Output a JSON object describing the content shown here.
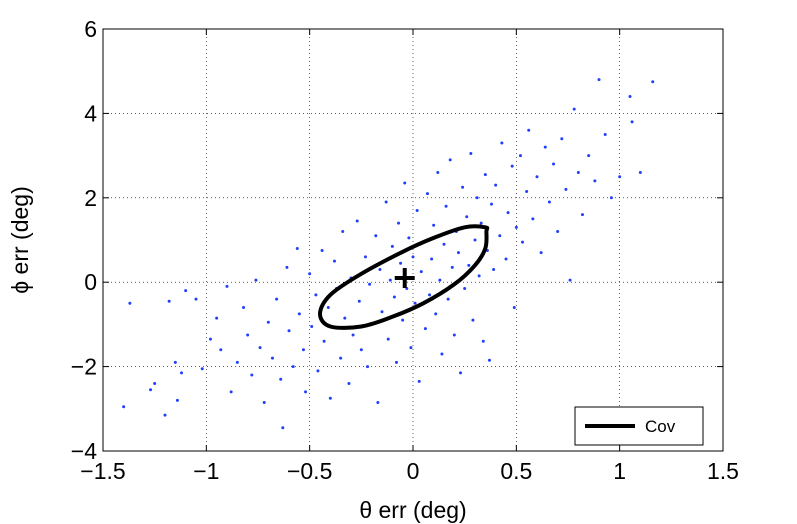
{
  "chart_data": {
    "type": "scatter",
    "title": "",
    "xlabel": "θ err (deg)",
    "ylabel": "ϕ err (deg)",
    "xlim": [
      -1.5,
      1.5
    ],
    "ylim": [
      -4,
      6
    ],
    "xticks": [
      -1.5,
      -1,
      -0.5,
      0,
      0.5,
      1,
      1.5
    ],
    "yticks": [
      -4,
      -2,
      0,
      2,
      4,
      6
    ],
    "xtick_labels": [
      "−1.5",
      "−1",
      "−0.5",
      "0",
      "0.5",
      "1",
      "1.5"
    ],
    "ytick_labels": [
      "−4",
      "−2",
      "0",
      "2",
      "4",
      "6"
    ],
    "grid": true,
    "grid_style": "dotted",
    "legend_position": "bottom-right",
    "series": [
      {
        "kind": "points",
        "color": "#1f3fff",
        "points": [
          [
            -1.4,
            -2.95
          ],
          [
            -1.37,
            -0.5
          ],
          [
            -1.27,
            -2.55
          ],
          [
            -1.25,
            -2.4
          ],
          [
            -1.2,
            -3.15
          ],
          [
            -1.18,
            -0.45
          ],
          [
            -1.15,
            -1.9
          ],
          [
            -1.14,
            -2.8
          ],
          [
            -1.12,
            -2.15
          ],
          [
            -1.1,
            -0.2
          ],
          [
            -1.05,
            -0.4
          ],
          [
            -1.02,
            -2.05
          ],
          [
            -0.98,
            -1.35
          ],
          [
            -0.95,
            -0.85
          ],
          [
            -0.93,
            -1.6
          ],
          [
            -0.9,
            -0.1
          ],
          [
            -0.88,
            -2.6
          ],
          [
            -0.85,
            -1.9
          ],
          [
            -0.82,
            -0.6
          ],
          [
            -0.8,
            -1.25
          ],
          [
            -0.78,
            -2.2
          ],
          [
            -0.76,
            0.05
          ],
          [
            -0.74,
            -1.55
          ],
          [
            -0.72,
            -2.85
          ],
          [
            -0.7,
            -0.95
          ],
          [
            -0.68,
            -1.8
          ],
          [
            -0.66,
            -0.4
          ],
          [
            -0.64,
            -2.3
          ],
          [
            -0.63,
            -3.45
          ],
          [
            -0.61,
            0.35
          ],
          [
            -0.6,
            -1.15
          ],
          [
            -0.58,
            -2.0
          ],
          [
            -0.56,
            0.8
          ],
          [
            -0.55,
            -0.75
          ],
          [
            -0.53,
            -1.6
          ],
          [
            -0.52,
            -2.6
          ],
          [
            -0.5,
            0.2
          ],
          [
            -0.49,
            -1.05
          ],
          [
            -0.47,
            -0.3
          ],
          [
            -0.46,
            -2.1
          ],
          [
            -0.44,
            0.75
          ],
          [
            -0.43,
            -1.4
          ],
          [
            -0.41,
            -0.6
          ],
          [
            -0.4,
            -2.75
          ],
          [
            -0.38,
            0.5
          ],
          [
            -0.37,
            -0.15
          ],
          [
            -0.35,
            -1.8
          ],
          [
            -0.34,
            1.2
          ],
          [
            -0.33,
            -0.85
          ],
          [
            -0.31,
            -2.4
          ],
          [
            -0.3,
            0.1
          ],
          [
            -0.29,
            -1.25
          ],
          [
            -0.27,
            1.45
          ],
          [
            -0.26,
            -0.45
          ],
          [
            -0.25,
            -1.6
          ],
          [
            -0.23,
            0.6
          ],
          [
            -0.22,
            -2.0
          ],
          [
            -0.21,
            -0.05
          ],
          [
            -0.2,
            -1.0
          ],
          [
            -0.18,
            1.1
          ],
          [
            -0.17,
            -2.85
          ],
          [
            -0.16,
            0.3
          ],
          [
            -0.15,
            -0.7
          ],
          [
            -0.13,
            1.9
          ],
          [
            -0.12,
            -1.35
          ],
          [
            -0.11,
            0.05
          ],
          [
            -0.1,
            0.85
          ],
          [
            -0.09,
            -0.35
          ],
          [
            -0.08,
            -1.9
          ],
          [
            -0.07,
            1.4
          ],
          [
            -0.06,
            0.45
          ],
          [
            -0.05,
            -0.9
          ],
          [
            -0.04,
            2.35
          ],
          [
            -0.03,
            -0.15
          ],
          [
            -0.02,
            1.05
          ],
          [
            -0.01,
            -1.55
          ],
          [
            0.0,
            0.6
          ],
          [
            0.01,
            -0.5
          ],
          [
            0.02,
            1.7
          ],
          [
            0.03,
            -2.35
          ],
          [
            0.04,
            0.25
          ],
          [
            0.05,
            0.95
          ],
          [
            0.06,
            -1.1
          ],
          [
            0.07,
            2.1
          ],
          [
            0.08,
            -0.3
          ],
          [
            0.09,
            0.55
          ],
          [
            0.1,
            1.35
          ],
          [
            0.11,
            -0.75
          ],
          [
            0.12,
            2.6
          ],
          [
            0.13,
            0.05
          ],
          [
            0.14,
            -1.7
          ],
          [
            0.15,
            0.9
          ],
          [
            0.16,
            1.8
          ],
          [
            0.17,
            -0.4
          ],
          [
            0.18,
            2.9
          ],
          [
            0.19,
            0.35
          ],
          [
            0.2,
            -1.25
          ],
          [
            0.21,
            1.2
          ],
          [
            0.22,
            0.7
          ],
          [
            0.23,
            -2.15
          ],
          [
            0.24,
            2.25
          ],
          [
            0.25,
            -0.15
          ],
          [
            0.26,
            1.55
          ],
          [
            0.27,
            0.4
          ],
          [
            0.28,
            3.05
          ],
          [
            0.29,
            -0.9
          ],
          [
            0.3,
            1.0
          ],
          [
            0.31,
            2.0
          ],
          [
            0.32,
            0.15
          ],
          [
            0.33,
            1.4
          ],
          [
            0.34,
            -1.4
          ],
          [
            0.35,
            2.55
          ],
          [
            0.36,
            0.75
          ],
          [
            0.37,
            -1.85
          ],
          [
            0.38,
            1.85
          ],
          [
            0.39,
            0.3
          ],
          [
            0.4,
            2.3
          ],
          [
            0.42,
            1.1
          ],
          [
            0.43,
            3.3
          ],
          [
            0.45,
            0.55
          ],
          [
            0.46,
            1.65
          ],
          [
            0.48,
            2.75
          ],
          [
            0.49,
            -0.6
          ],
          [
            0.5,
            1.3
          ],
          [
            0.52,
            3.0
          ],
          [
            0.53,
            0.95
          ],
          [
            0.55,
            2.15
          ],
          [
            0.56,
            3.6
          ],
          [
            0.58,
            1.5
          ],
          [
            0.6,
            2.5
          ],
          [
            0.62,
            0.7
          ],
          [
            0.64,
            3.2
          ],
          [
            0.66,
            1.9
          ],
          [
            0.68,
            2.8
          ],
          [
            0.7,
            1.2
          ],
          [
            0.72,
            3.4
          ],
          [
            0.74,
            2.2
          ],
          [
            0.76,
            0.05
          ],
          [
            0.78,
            4.1
          ],
          [
            0.8,
            2.6
          ],
          [
            0.82,
            1.6
          ],
          [
            0.85,
            3.0
          ],
          [
            0.88,
            2.4
          ],
          [
            0.9,
            4.8
          ],
          [
            0.93,
            3.5
          ],
          [
            0.96,
            2.0
          ],
          [
            1.0,
            2.5
          ],
          [
            1.05,
            4.4
          ],
          [
            1.06,
            3.8
          ],
          [
            1.1,
            2.6
          ],
          [
            1.16,
            4.75
          ]
        ]
      },
      {
        "kind": "ellipse",
        "name": "Cov",
        "color": "#000000",
        "center": [
          -0.04,
          0.1
        ],
        "semi_axes": [
          0.45,
          0.62
        ],
        "ellipse_points": [
          [
            0.355,
            1.2
          ],
          [
            0.35,
            0.8
          ],
          [
            0.3,
            0.4
          ],
          [
            0.2,
            -0.05
          ],
          [
            0.05,
            -0.5
          ],
          [
            -0.1,
            -0.82
          ],
          [
            -0.25,
            -1.05
          ],
          [
            -0.4,
            -1.05
          ],
          [
            -0.45,
            -0.75
          ],
          [
            -0.4,
            -0.3
          ],
          [
            -0.25,
            0.2
          ],
          [
            -0.05,
            0.72
          ],
          [
            0.1,
            1.05
          ],
          [
            0.25,
            1.3
          ],
          [
            0.35,
            1.3
          ]
        ]
      }
    ],
    "center_marker": {
      "shape": "plus",
      "x": -0.04,
      "y": 0.1,
      "color": "#000000"
    },
    "legend": [
      {
        "label": "Cov",
        "color": "#000000"
      }
    ]
  }
}
